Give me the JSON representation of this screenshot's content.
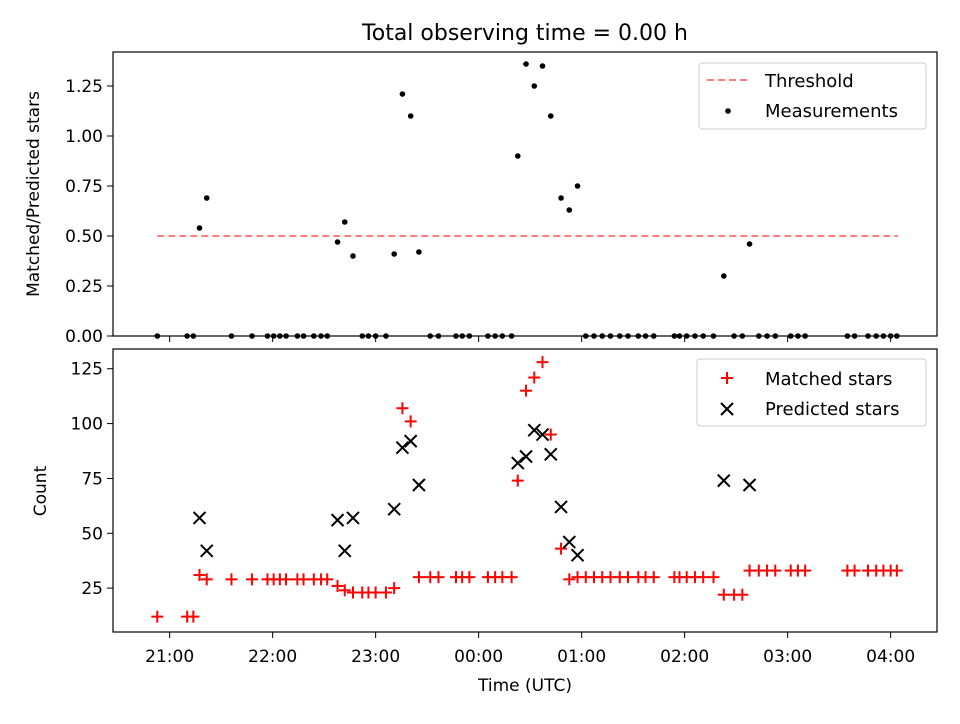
{
  "title": "Total observing time = 0.00 h",
  "x_ticks": [
    "21:00",
    "22:00",
    "23:00",
    "00:00",
    "01:00",
    "02:00",
    "03:00",
    "04:00"
  ],
  "chart_data": [
    {
      "type": "scatter",
      "ylabel": "Matched/Predicted stars",
      "ylim": [
        0,
        1.42
      ],
      "yticks": [
        "0.00",
        "0.25",
        "0.50",
        "0.75",
        "1.00",
        "1.25"
      ],
      "xlim": [
        -3.55,
        4.45
      ],
      "grid": false,
      "legend_position": "top-right",
      "legend": [
        "Threshold",
        "Measurements"
      ],
      "threshold": {
        "value": 0.5,
        "x_range": [
          -3.12,
          4.07
        ],
        "color": "#ff7f7f"
      },
      "points": [
        [
          -3.12,
          0
        ],
        [
          -2.83,
          0
        ],
        [
          -2.77,
          0
        ],
        [
          -2.71,
          0.54
        ],
        [
          -2.64,
          0.69
        ],
        [
          -2.4,
          0
        ],
        [
          -2.2,
          0
        ],
        [
          -2.05,
          0
        ],
        [
          -1.99,
          0
        ],
        [
          -1.93,
          0
        ],
        [
          -1.87,
          0
        ],
        [
          -1.76,
          0
        ],
        [
          -1.7,
          0
        ],
        [
          -1.6,
          0
        ],
        [
          -1.53,
          0
        ],
        [
          -1.47,
          0
        ],
        [
          -1.37,
          0.47
        ],
        [
          -1.3,
          0.57
        ],
        [
          -1.22,
          0.4
        ],
        [
          -1.13,
          0
        ],
        [
          -1.07,
          0
        ],
        [
          -1.0,
          0
        ],
        [
          -0.9,
          0
        ],
        [
          -0.82,
          0.41
        ],
        [
          -0.74,
          1.21
        ],
        [
          -0.66,
          1.1
        ],
        [
          -0.58,
          0.42
        ],
        [
          -0.47,
          0
        ],
        [
          -0.39,
          0
        ],
        [
          -0.22,
          0
        ],
        [
          -0.16,
          0
        ],
        [
          -0.09,
          0
        ],
        [
          0.09,
          0
        ],
        [
          0.16,
          0
        ],
        [
          0.23,
          0
        ],
        [
          0.32,
          0
        ],
        [
          0.38,
          0.9
        ],
        [
          0.46,
          1.36
        ],
        [
          0.54,
          1.25
        ],
        [
          0.62,
          1.35
        ],
        [
          0.7,
          1.1
        ],
        [
          0.8,
          0.69
        ],
        [
          0.88,
          0.63
        ],
        [
          0.96,
          0.75
        ],
        [
          1.04,
          0
        ],
        [
          1.12,
          0
        ],
        [
          1.2,
          0
        ],
        [
          1.28,
          0
        ],
        [
          1.37,
          0
        ],
        [
          1.45,
          0
        ],
        [
          1.55,
          0
        ],
        [
          1.62,
          0
        ],
        [
          1.7,
          0
        ],
        [
          1.9,
          0
        ],
        [
          1.95,
          0
        ],
        [
          2.02,
          0
        ],
        [
          2.1,
          0
        ],
        [
          2.18,
          0
        ],
        [
          2.28,
          0
        ],
        [
          2.38,
          0.3
        ],
        [
          2.48,
          0
        ],
        [
          2.56,
          0
        ],
        [
          2.63,
          0.46
        ],
        [
          2.72,
          0
        ],
        [
          2.8,
          0
        ],
        [
          2.88,
          0
        ],
        [
          3.03,
          0
        ],
        [
          3.1,
          0
        ],
        [
          3.17,
          0
        ],
        [
          3.58,
          0
        ],
        [
          3.65,
          0
        ],
        [
          3.78,
          0
        ],
        [
          3.86,
          0
        ],
        [
          3.93,
          0
        ],
        [
          4.0,
          0
        ],
        [
          4.06,
          0
        ]
      ],
      "colors": {
        "threshold": "#ff7f7f",
        "measurements": "#000000"
      }
    },
    {
      "type": "scatter",
      "xlabel": "Time (UTC)",
      "ylabel": "Count",
      "ylim": [
        5,
        134
      ],
      "yticks": [
        "25",
        "50",
        "75",
        "100",
        "125"
      ],
      "xlim": [
        -3.55,
        4.45
      ],
      "grid": false,
      "legend_position": "top-right",
      "legend": [
        "Matched stars",
        "Predicted stars"
      ],
      "series": [
        {
          "name": "Matched stars",
          "marker": "+",
          "color": "#ff0000",
          "points": [
            [
              -3.12,
              12
            ],
            [
              -2.83,
              12
            ],
            [
              -2.77,
              12
            ],
            [
              -2.71,
              31
            ],
            [
              -2.64,
              29
            ],
            [
              -2.4,
              29
            ],
            [
              -2.2,
              29
            ],
            [
              -2.05,
              29
            ],
            [
              -1.99,
              29
            ],
            [
              -1.93,
              29
            ],
            [
              -1.87,
              29
            ],
            [
              -1.76,
              29
            ],
            [
              -1.7,
              29
            ],
            [
              -1.6,
              29
            ],
            [
              -1.53,
              29
            ],
            [
              -1.47,
              29
            ],
            [
              -1.37,
              26
            ],
            [
              -1.3,
              24
            ],
            [
              -1.22,
              23
            ],
            [
              -1.13,
              23
            ],
            [
              -1.07,
              23
            ],
            [
              -1.0,
              23
            ],
            [
              -0.9,
              23
            ],
            [
              -0.82,
              25
            ],
            [
              -0.74,
              107
            ],
            [
              -0.66,
              101
            ],
            [
              -0.58,
              30
            ],
            [
              -0.47,
              30
            ],
            [
              -0.39,
              30
            ],
            [
              -0.22,
              30
            ],
            [
              -0.16,
              30
            ],
            [
              -0.09,
              30
            ],
            [
              0.09,
              30
            ],
            [
              0.16,
              30
            ],
            [
              0.23,
              30
            ],
            [
              0.32,
              30
            ],
            [
              0.38,
              74
            ],
            [
              0.46,
              115
            ],
            [
              0.54,
              121
            ],
            [
              0.62,
              128
            ],
            [
              0.7,
              95
            ],
            [
              0.8,
              43
            ],
            [
              0.88,
              29
            ],
            [
              0.96,
              30
            ],
            [
              1.04,
              30
            ],
            [
              1.12,
              30
            ],
            [
              1.2,
              30
            ],
            [
              1.28,
              30
            ],
            [
              1.37,
              30
            ],
            [
              1.45,
              30
            ],
            [
              1.55,
              30
            ],
            [
              1.62,
              30
            ],
            [
              1.7,
              30
            ],
            [
              1.9,
              30
            ],
            [
              1.95,
              30
            ],
            [
              2.02,
              30
            ],
            [
              2.1,
              30
            ],
            [
              2.18,
              30
            ],
            [
              2.28,
              30
            ],
            [
              2.38,
              22
            ],
            [
              2.48,
              22
            ],
            [
              2.56,
              22
            ],
            [
              2.63,
              33
            ],
            [
              2.72,
              33
            ],
            [
              2.8,
              33
            ],
            [
              2.88,
              33
            ],
            [
              3.03,
              33
            ],
            [
              3.1,
              33
            ],
            [
              3.17,
              33
            ],
            [
              3.58,
              33
            ],
            [
              3.65,
              33
            ],
            [
              3.78,
              33
            ],
            [
              3.86,
              33
            ],
            [
              3.93,
              33
            ],
            [
              4.0,
              33
            ],
            [
              4.06,
              33
            ]
          ]
        },
        {
          "name": "Predicted stars",
          "marker": "x",
          "color": "#000000",
          "points": [
            [
              -2.71,
              57
            ],
            [
              -2.64,
              42
            ],
            [
              -1.37,
              56
            ],
            [
              -1.3,
              42
            ],
            [
              -1.22,
              57
            ],
            [
              -0.82,
              61
            ],
            [
              -0.74,
              89
            ],
            [
              -0.66,
              92
            ],
            [
              -0.58,
              72
            ],
            [
              0.38,
              82
            ],
            [
              0.46,
              85
            ],
            [
              0.54,
              97
            ],
            [
              0.62,
              95
            ],
            [
              0.7,
              86
            ],
            [
              0.8,
              62
            ],
            [
              0.88,
              46
            ],
            [
              0.96,
              40
            ],
            [
              2.38,
              74
            ],
            [
              2.63,
              72
            ]
          ]
        }
      ]
    }
  ]
}
